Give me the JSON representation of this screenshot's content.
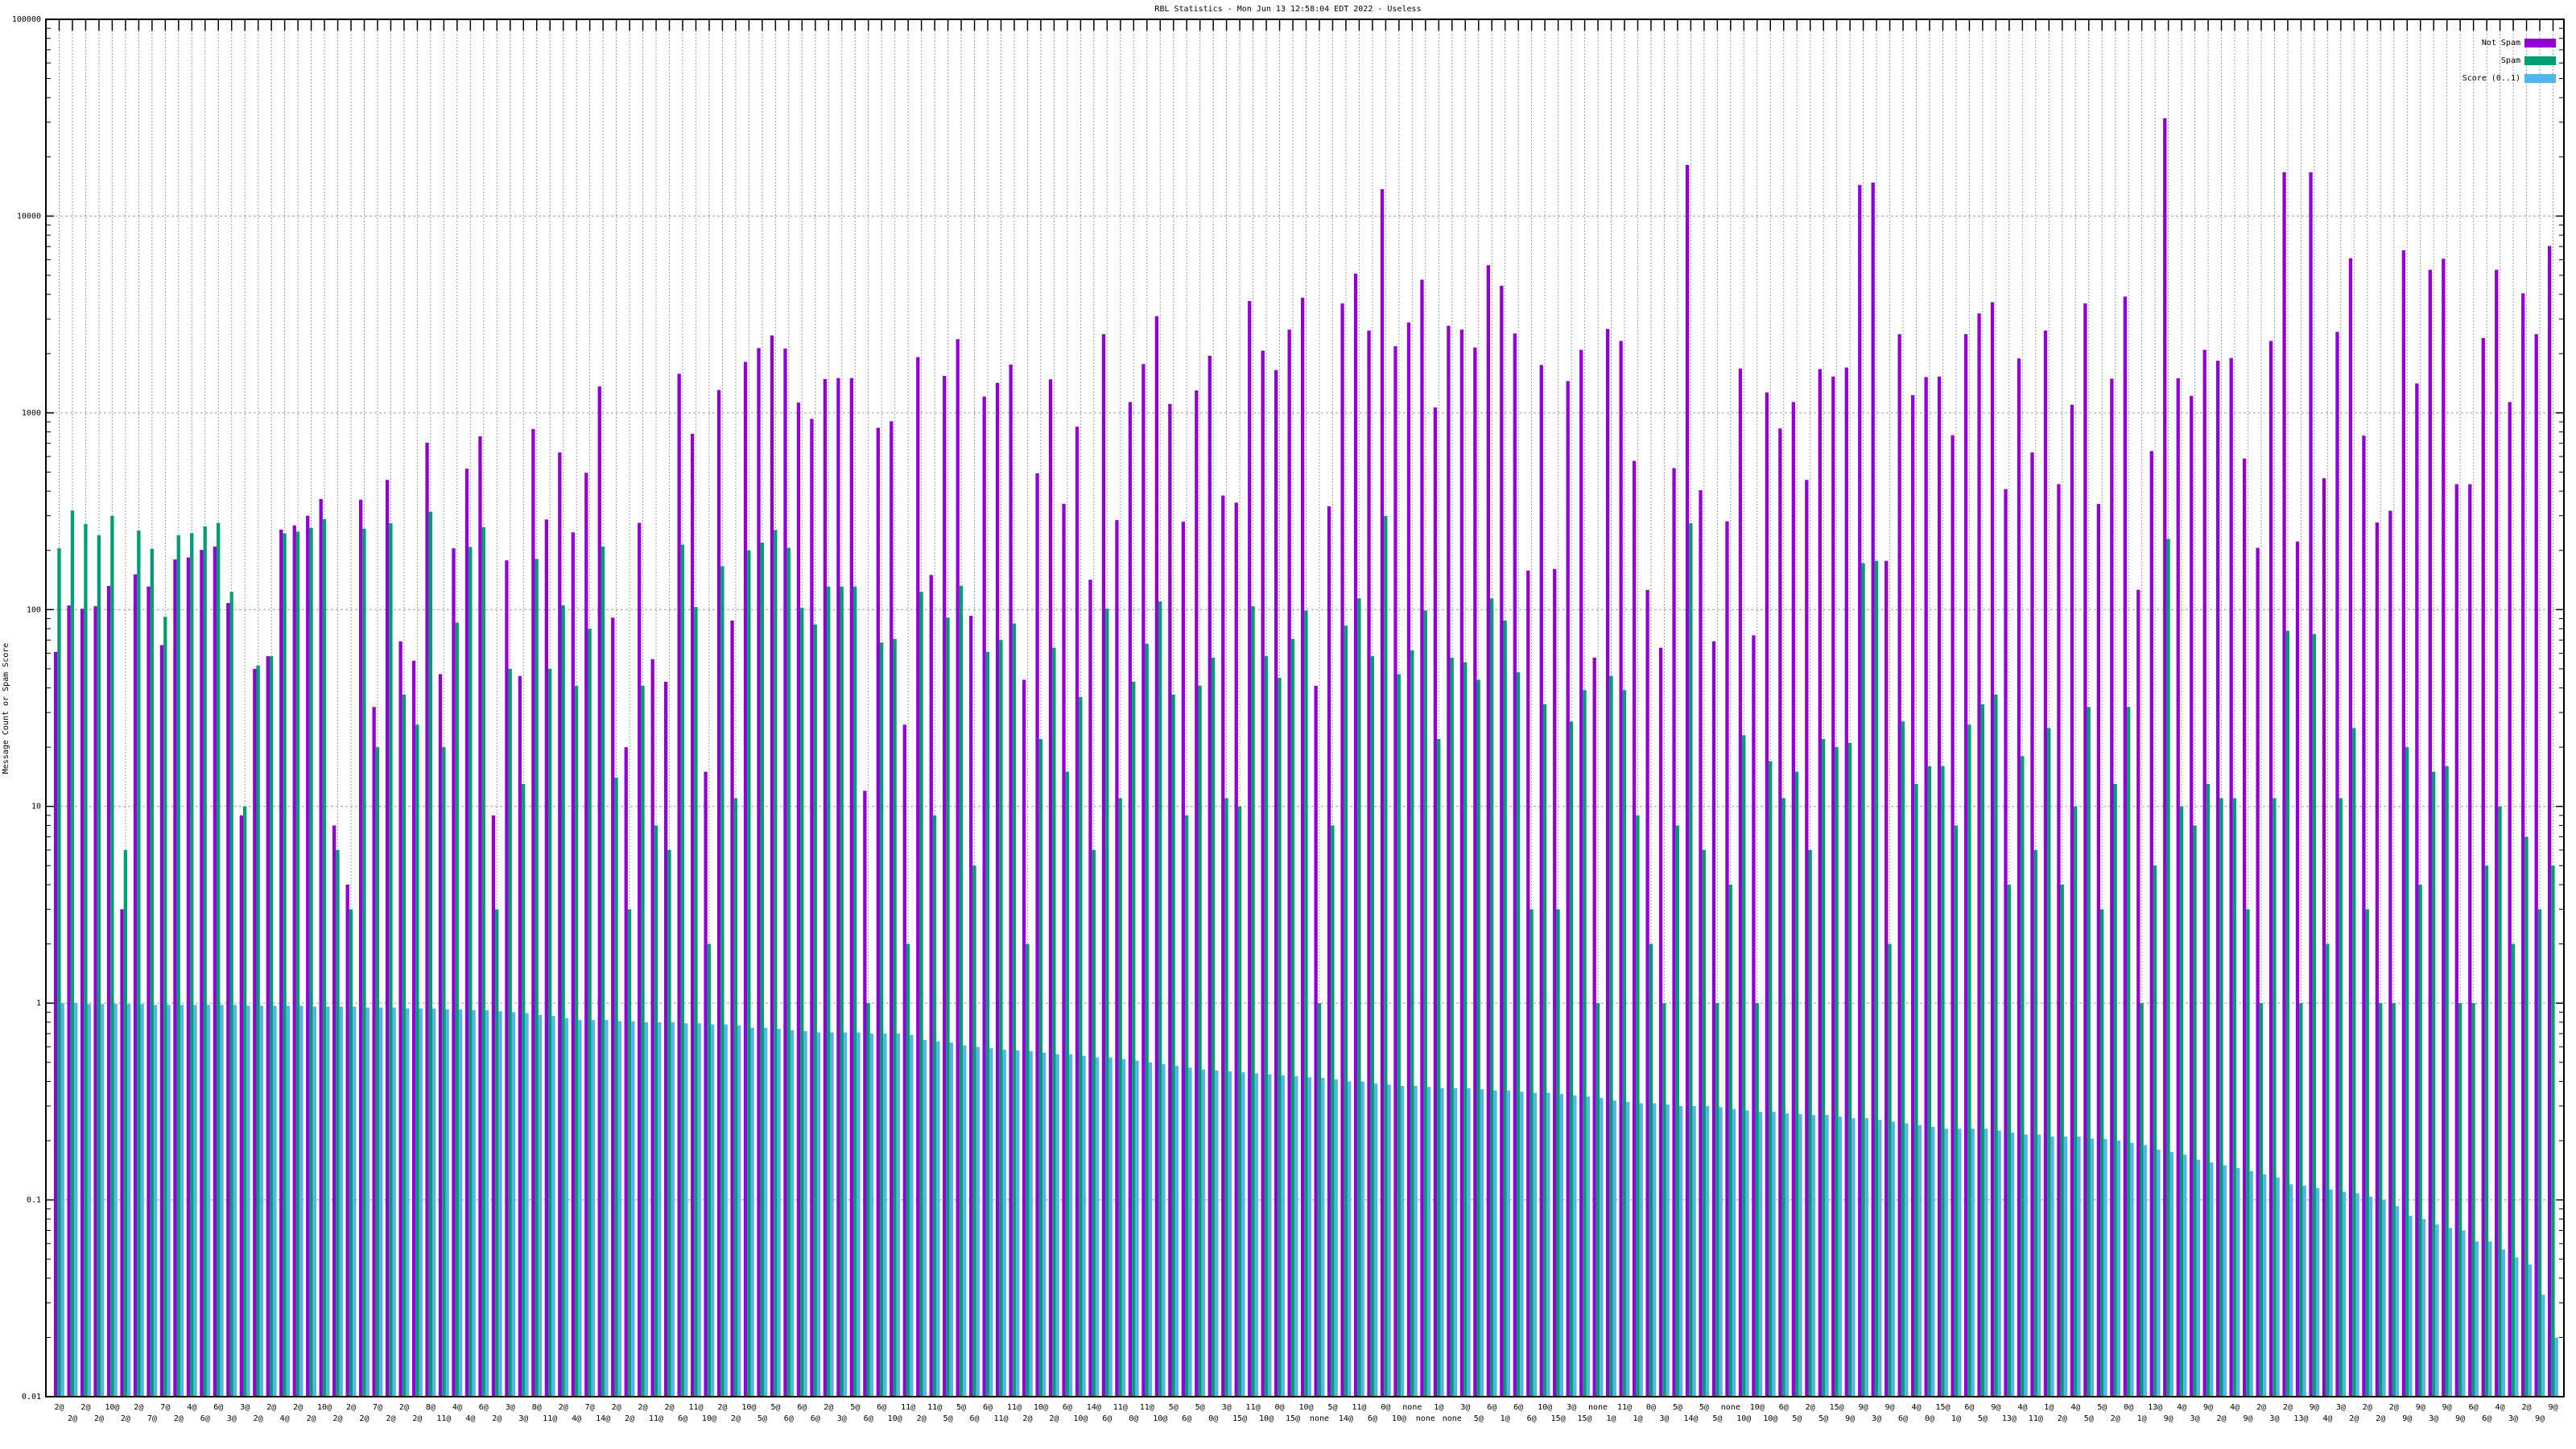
{
  "chart_data": {
    "type": "bar",
    "title": "RBL Statistics - Mon Jun 13 12:58:04 EDT 2022 - Useless",
    "xlabel": "",
    "ylabel": "Message Count or Spam Score",
    "yscale": "log",
    "ylim": [
      0.01,
      100000
    ],
    "yticks": [
      "100000",
      "10000",
      "1000",
      "100",
      "10",
      "1",
      "0.1",
      "0.01"
    ],
    "grid": true,
    "legend_position": "top-right",
    "categories": [
      "2@",
      "2@",
      "2@",
      "2@",
      "10@",
      "2@",
      "2@",
      "7@",
      "7@",
      "2@",
      "4@",
      "6@",
      "6@",
      "3@",
      "3@",
      "2@",
      "2@",
      "4@",
      "2@",
      "2@",
      "10@",
      "2@",
      "2@",
      "2@",
      "7@",
      "2@",
      "2@",
      "2@",
      "8@",
      "11@",
      "4@",
      "4@",
      "6@",
      "2@",
      "3@",
      "3@",
      "8@",
      "11@",
      "2@",
      "4@",
      "7@",
      "14@",
      "2@",
      "2@",
      "2@",
      "11@",
      "2@",
      "6@",
      "11@",
      "10@",
      "2@",
      "2@",
      "10@",
      "5@",
      "5@",
      "6@",
      "6@",
      "6@",
      "2@",
      "3@",
      "5@",
      "6@",
      "6@",
      "10@",
      "11@",
      "2@",
      "11@",
      "5@",
      "5@",
      "6@",
      "6@",
      "11@",
      "11@",
      "2@",
      "10@",
      "2@",
      "6@",
      "10@",
      "14@",
      "6@",
      "11@",
      "0@",
      "11@",
      "10@",
      "5@",
      "6@",
      "5@",
      "0@",
      "3@",
      "15@",
      "11@",
      "10@",
      "0@",
      "15@",
      "10@",
      "none",
      "5@",
      "14@",
      "11@",
      "6@",
      "0@",
      "10@",
      "none",
      "none",
      "1@",
      "none",
      "3@",
      "5@",
      "6@",
      "1@",
      "6@",
      "6@",
      "10@",
      "15@",
      "3@",
      "15@",
      "none",
      "1@",
      "11@",
      "1@",
      "0@",
      "3@",
      "5@",
      "14@",
      "5@",
      "5@",
      "none",
      "10@",
      "10@",
      "10@",
      "6@",
      "5@",
      "2@",
      "5@",
      "15@",
      "9@",
      "9@",
      "3@",
      "9@",
      "6@",
      "4@",
      "0@",
      "15@",
      "1@",
      "6@",
      "5@",
      "9@",
      "13@",
      "4@",
      "11@",
      "1@",
      "2@",
      "4@",
      "5@",
      "5@",
      "2@",
      "0@",
      "1@",
      "13@",
      "9@",
      "4@",
      "3@",
      "9@",
      "2@",
      "4@",
      "9@",
      "2@",
      "3@",
      "2@",
      "13@",
      "9@",
      "4@",
      "3@",
      "2@",
      "2@",
      "2@",
      "2@",
      "9@",
      "9@",
      "3@",
      "9@",
      "9@",
      "6@",
      "6@",
      "4@",
      "3@",
      "2@",
      "9@",
      "9@"
    ],
    "series": [
      {
        "name": "Not Spam",
        "color": "#9400d3",
        "values": [
          61,
          105,
          101,
          104,
          132,
          3,
          151,
          131,
          66,
          180,
          184,
          201,
          209,
          108,
          9,
          50,
          58,
          255,
          268,
          300,
          365,
          8,
          4,
          362,
          32,
          456,
          69,
          55,
          705,
          47,
          205,
          520,
          760,
          9,
          178,
          46,
          827,
          287,
          629,
          247,
          496,
          1362,
          91,
          20,
          276,
          56,
          43,
          1580,
          782,
          15,
          1306,
          88,
          1816,
          2134,
          2474,
          2120,
          1127,
          932,
          1485,
          1502,
          1502,
          12,
          839,
          906,
          26,
          1920,
          150,
          1540,
          2370,
          93,
          1210,
          1420,
          1760,
          44,
          493,
          1480,
          345,
          850,
          142,
          2510,
          285,
          1135,
          1770,
          3100,
          1110,
          280,
          1300,
          1950,
          380,
          350,
          3700,
          2070,
          1650,
          2650,
          3850,
          41,
          335,
          3600,
          5100,
          2620,
          13700,
          2180,
          2880,
          4750,
          1065,
          2770,
          2650,
          2150,
          5630,
          4420,
          2530,
          158,
          1750,
          161,
          1450,
          2090,
          57,
          2670,
          2320,
          570,
          126,
          64,
          524,
          18200,
          404,
          69,
          281,
          1680,
          74,
          1270,
          833,
          1135,
          456,
          1670,
          1530,
          1700,
          14400,
          14800,
          177,
          2510,
          1230,
          1520,
          1530,
          770,
          2510,
          3200,
          3650,
          410,
          1890,
          629,
          2620,
          434,
          1100,
          3600,
          344,
          1490,
          3900,
          126,
          640,
          31400,
          1500,
          1220,
          2090,
          1840,
          1900,
          586,
          206,
          2320,
          16700,
          222,
          16700,
          465,
          2580,
          6110,
          766,
          277,
          318,
          6700,
          1410,
          5330,
          6070,
          434,
          434,
          2400,
          5330,
          1135,
          4050,
          2510,
          7050
        ]
      },
      {
        "name": "Spam",
        "color": "#009e73",
        "values": [
          205,
          319,
          272,
          239,
          300,
          6,
          252,
          204,
          92,
          239,
          245,
          265,
          276,
          123,
          10,
          52,
          58,
          244,
          249,
          260,
          288,
          6,
          3,
          258,
          20,
          275,
          37,
          26,
          314,
          20,
          86,
          208,
          262,
          3,
          50,
          13,
          181,
          50,
          105,
          41,
          80,
          209,
          14,
          3,
          41,
          8,
          6,
          214,
          103,
          2,
          166,
          11,
          200,
          219,
          254,
          206,
          102,
          84,
          131,
          131,
          131,
          1,
          68,
          71,
          2,
          123,
          9,
          91,
          132,
          5,
          61,
          70,
          85,
          2,
          22,
          64,
          15,
          36,
          6,
          101,
          11,
          43,
          67,
          110,
          37,
          9,
          41,
          57,
          11,
          10,
          104,
          58,
          45,
          71,
          99,
          1,
          8,
          83,
          114,
          58,
          299,
          47,
          62,
          99,
          22,
          57,
          54,
          44,
          114,
          88,
          48,
          3,
          33,
          3,
          27,
          39,
          1,
          46,
          39,
          9,
          2,
          1,
          8,
          275,
          6,
          1,
          4,
          23,
          1,
          17,
          11,
          15,
          6,
          22,
          20,
          21,
          172,
          177,
          2,
          27,
          13,
          16,
          16,
          8,
          26,
          33,
          37,
          4,
          18,
          6,
          25,
          4,
          10,
          32,
          3,
          13,
          32,
          1,
          5,
          229,
          10,
          8,
          13,
          11,
          11,
          3,
          1,
          11,
          78,
          1,
          75,
          2,
          11,
          25,
          3,
          1,
          1,
          20,
          4,
          15,
          16,
          1,
          1,
          5,
          10,
          2,
          7,
          3,
          5
        ]
      },
      {
        "name": "Score (0..1)",
        "color": "#56b4e9",
        "values": [
          1.0,
          1.0,
          0.99,
          0.99,
          0.99,
          0.99,
          0.99,
          0.98,
          0.98,
          0.98,
          0.98,
          0.98,
          0.98,
          0.98,
          0.97,
          0.97,
          0.97,
          0.97,
          0.97,
          0.96,
          0.96,
          0.96,
          0.96,
          0.95,
          0.95,
          0.95,
          0.94,
          0.94,
          0.94,
          0.93,
          0.93,
          0.92,
          0.92,
          0.91,
          0.9,
          0.89,
          0.87,
          0.86,
          0.84,
          0.82,
          0.82,
          0.82,
          0.81,
          0.81,
          0.8,
          0.8,
          0.8,
          0.79,
          0.79,
          0.78,
          0.78,
          0.77,
          0.75,
          0.75,
          0.74,
          0.73,
          0.72,
          0.71,
          0.71,
          0.71,
          0.71,
          0.7,
          0.7,
          0.7,
          0.69,
          0.65,
          0.64,
          0.63,
          0.61,
          0.6,
          0.59,
          0.58,
          0.575,
          0.57,
          0.56,
          0.55,
          0.55,
          0.54,
          0.53,
          0.53,
          0.52,
          0.51,
          0.5,
          0.49,
          0.48,
          0.47,
          0.46,
          0.455,
          0.45,
          0.445,
          0.44,
          0.435,
          0.43,
          0.425,
          0.42,
          0.417,
          0.41,
          0.4,
          0.4,
          0.39,
          0.385,
          0.38,
          0.38,
          0.375,
          0.37,
          0.37,
          0.37,
          0.365,
          0.36,
          0.36,
          0.355,
          0.35,
          0.35,
          0.346,
          0.34,
          0.335,
          0.33,
          0.32,
          0.315,
          0.31,
          0.31,
          0.305,
          0.3,
          0.3,
          0.3,
          0.296,
          0.29,
          0.285,
          0.28,
          0.28,
          0.275,
          0.273,
          0.27,
          0.27,
          0.265,
          0.26,
          0.26,
          0.255,
          0.25,
          0.245,
          0.24,
          0.235,
          0.23,
          0.23,
          0.23,
          0.23,
          0.225,
          0.22,
          0.215,
          0.215,
          0.21,
          0.21,
          0.21,
          0.205,
          0.204,
          0.2,
          0.195,
          0.19,
          0.18,
          0.175,
          0.17,
          0.16,
          0.155,
          0.15,
          0.145,
          0.14,
          0.135,
          0.13,
          0.12,
          0.118,
          0.115,
          0.113,
          0.11,
          0.108,
          0.104,
          0.1,
          0.093,
          0.083,
          0.08,
          0.075,
          0.072,
          0.07,
          0.0615,
          0.0615,
          0.056,
          0.051,
          0.047,
          0.033,
          0.02
        ]
      }
    ]
  }
}
